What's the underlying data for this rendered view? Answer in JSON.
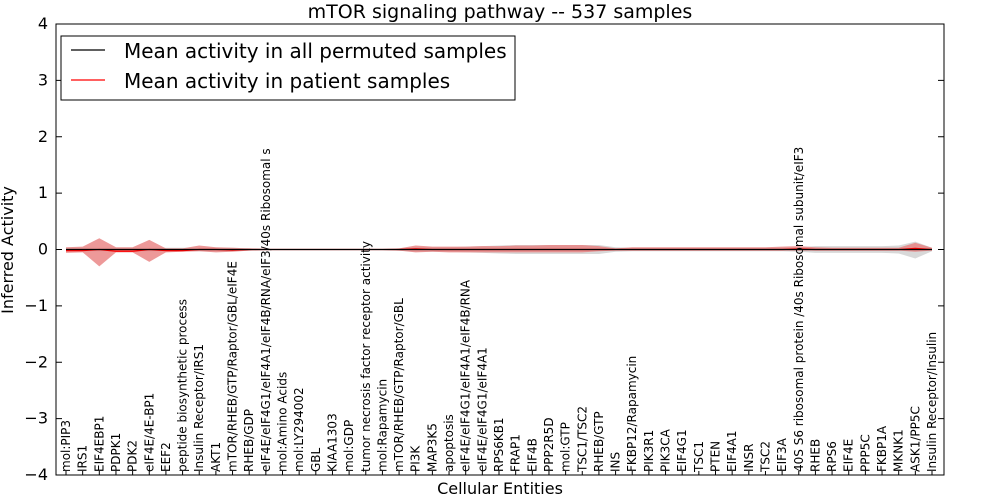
{
  "chart_data": {
    "type": "line",
    "title": "mTOR signaling pathway -- 537 samples",
    "xlabel": "Cellular Entities",
    "ylabel": "Inferred Activity",
    "ylim": [
      -4,
      4
    ],
    "yticks": [
      4,
      3,
      2,
      1,
      0,
      -1,
      -2,
      -3,
      -4
    ],
    "ytick_labels": [
      "4",
      "3",
      "2",
      "1",
      "0",
      "−1",
      "−2",
      "−3",
      "−4"
    ],
    "legend_position": "top-left",
    "colors": {
      "permuted": "#000000",
      "patient": "#ff0000",
      "patient_band": "#e88080",
      "permuted_band": "#c8c8c8"
    },
    "categories": [
      "mol:PIP3",
      "IRS1",
      "EIF4EBP1",
      "PDPK1",
      "PDK2",
      "eIF4E/4E-BP1",
      "EEF2",
      "peptide biosynthetic process",
      "Insulin Receptor/IRS1",
      "AKT1",
      "mTOR/RHEB/GTP/Raptor/GBL/eIF4E",
      "RHEB/GDP",
      "eIF4E/eIF4G1/eIF4A1/eIF4B/RNA/eIF3/40s Ribosomal s",
      "mol:Amino Acids",
      "mol:LY294002",
      "GBL",
      "KIAA1303",
      "mol:GDP",
      "tumor necrosis factor receptor activity",
      "mol:Rapamycin",
      "mTOR/RHEB/GTP/Raptor/GBL",
      "PI3K",
      "MAP3K5",
      "apoptosis",
      "eIF4E/eIF4G1/eIF4A1/eIF4B/RNA",
      "eIF4E/eIF4G1/eIF4A1",
      "RPS6KB1",
      "FRAP1",
      "EIF4B",
      "PPP2R5D",
      "mol:GTP",
      "TSC1/TSC2",
      "RHEB/GTP",
      "INS",
      "FKBP12/Rapamycin",
      "PIK3R1",
      "PIK3CA",
      "EIF4G1",
      "TSC1",
      "PTEN",
      "EIF4A1",
      "INSR",
      "TSC2",
      "EIF3A",
      "40S S6 ribosomal protein /40s Ribosomal subunit/eIF3",
      "RHEB",
      "RPS6",
      "EIF4E",
      "PPP5C",
      "FKBP1A",
      "MKNK1",
      "ASK1/PP5C",
      "Insulin Receptor/Insulin"
    ],
    "series": [
      {
        "name": "Mean activity in all permuted samples",
        "values": [
          0,
          0,
          0,
          0,
          0,
          0,
          0,
          0,
          0,
          0,
          0,
          0,
          0,
          0,
          0,
          0,
          0,
          0,
          0,
          0,
          0,
          0,
          0,
          0,
          0,
          0,
          0,
          0,
          0,
          0,
          0,
          0,
          0,
          0,
          0,
          0,
          0,
          0,
          0,
          0,
          0,
          0,
          0,
          0,
          0,
          0,
          0,
          0,
          0,
          0,
          0,
          0,
          0
        ],
        "band_lower": [
          -0.03,
          -0.03,
          -0.03,
          -0.03,
          -0.03,
          -0.03,
          -0.03,
          -0.03,
          -0.03,
          -0.03,
          -0.03,
          -0.02,
          -0.01,
          -0.01,
          -0.01,
          -0.01,
          -0.01,
          -0.01,
          -0.01,
          -0.01,
          -0.02,
          -0.04,
          -0.04,
          -0.04,
          -0.05,
          -0.06,
          -0.07,
          -0.08,
          -0.08,
          -0.08,
          -0.08,
          -0.08,
          -0.08,
          -0.04,
          -0.03,
          -0.03,
          -0.03,
          -0.03,
          -0.03,
          -0.03,
          -0.03,
          -0.03,
          -0.03,
          -0.03,
          -0.04,
          -0.06,
          -0.06,
          -0.06,
          -0.06,
          -0.06,
          -0.07,
          -0.16,
          -0.03
        ],
        "band_upper": [
          0.03,
          0.03,
          0.03,
          0.03,
          0.03,
          0.03,
          0.03,
          0.03,
          0.03,
          0.03,
          0.03,
          0.02,
          0.01,
          0.01,
          0.01,
          0.01,
          0.01,
          0.01,
          0.01,
          0.01,
          0.02,
          0.04,
          0.04,
          0.04,
          0.05,
          0.06,
          0.07,
          0.08,
          0.08,
          0.08,
          0.08,
          0.08,
          0.08,
          0.04,
          0.03,
          0.03,
          0.03,
          0.03,
          0.03,
          0.03,
          0.03,
          0.03,
          0.03,
          0.03,
          0.04,
          0.06,
          0.06,
          0.06,
          0.06,
          0.06,
          0.07,
          0.14,
          0.03
        ]
      },
      {
        "name": "Mean activity in patient samples",
        "values": [
          -0.02,
          -0.02,
          0.0,
          -0.03,
          -0.03,
          0.0,
          -0.02,
          -0.02,
          0.0,
          0.0,
          -0.01,
          0.0,
          0.0,
          0.0,
          0.0,
          0.0,
          0.0,
          0.0,
          0.0,
          0.0,
          0.0,
          0.01,
          0.0,
          0.0,
          0.0,
          0.0,
          0.0,
          0.0,
          0.0,
          0.0,
          0.0,
          0.0,
          0.0,
          0.0,
          0.0,
          0.0,
          0.0,
          0.0,
          0.0,
          0.0,
          0.0,
          0.0,
          0.0,
          0.0,
          0.01,
          0.0,
          0.0,
          0.0,
          0.0,
          0.0,
          0.0,
          0.02,
          0.0
        ],
        "band_lower": [
          -0.06,
          -0.05,
          -0.3,
          -0.05,
          -0.05,
          -0.22,
          -0.05,
          -0.04,
          -0.03,
          -0.05,
          -0.04,
          -0.02,
          -0.01,
          -0.01,
          -0.01,
          -0.01,
          -0.01,
          -0.01,
          -0.01,
          -0.01,
          -0.02,
          -0.05,
          -0.04,
          -0.05,
          -0.05,
          -0.05,
          -0.05,
          -0.05,
          -0.05,
          -0.05,
          -0.05,
          -0.05,
          -0.03,
          -0.02,
          -0.02,
          -0.02,
          -0.02,
          -0.02,
          -0.02,
          -0.02,
          -0.02,
          -0.02,
          -0.02,
          -0.02,
          -0.02,
          -0.02,
          -0.02,
          -0.02,
          -0.02,
          -0.02,
          -0.02,
          -0.04,
          -0.02
        ],
        "band_upper": [
          0.04,
          0.05,
          0.2,
          0.04,
          0.04,
          0.17,
          0.02,
          0.02,
          0.07,
          0.04,
          0.03,
          0.02,
          0.01,
          0.01,
          0.01,
          0.01,
          0.01,
          0.01,
          0.01,
          0.01,
          0.02,
          0.07,
          0.05,
          0.05,
          0.05,
          0.06,
          0.06,
          0.07,
          0.07,
          0.08,
          0.08,
          0.08,
          0.06,
          0.02,
          0.04,
          0.04,
          0.04,
          0.04,
          0.04,
          0.04,
          0.04,
          0.04,
          0.04,
          0.05,
          0.06,
          0.04,
          0.03,
          0.03,
          0.03,
          0.03,
          0.03,
          0.12,
          0.03
        ]
      }
    ]
  }
}
